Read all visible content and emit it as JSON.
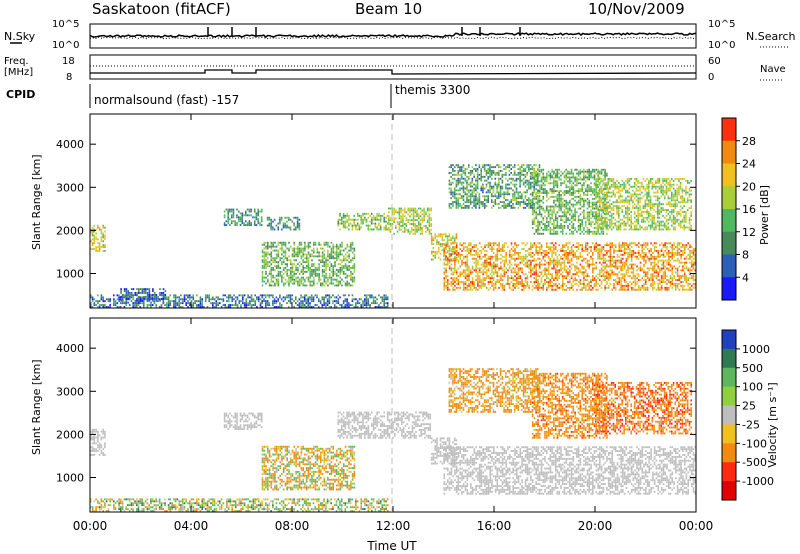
{
  "header": {
    "station": "Saskatoon (fitACF)",
    "beam": "Beam 10",
    "date": "10/Nov/2009"
  },
  "top_panels": {
    "nsky_label": "N.Sky",
    "nsearch_label": "N.Search",
    "nsky_ticks": [
      "10^5",
      "10^0"
    ],
    "nsearch_ticks": [
      "10^5",
      "10^0"
    ],
    "freq_label": "Freq.",
    "freq_unit": "[MHz]",
    "freq_ticks": [
      "18",
      "8"
    ],
    "nave_label": "Nave",
    "nave_ticks": [
      "60",
      "0"
    ],
    "cpid_label": "CPID",
    "cpid_segments": [
      "normalsound (fast) -157",
      "themis 3300"
    ]
  },
  "colorbars": {
    "power": {
      "label": "Power [dB]",
      "ticks": [
        "28",
        "24",
        "20",
        "16",
        "12",
        "8",
        "4"
      ],
      "colors": [
        "#1a1aff",
        "#2b5fb8",
        "#4a8a5a",
        "#4fb860",
        "#a8cf3a",
        "#f0c020",
        "#f08a10",
        "#ff3010"
      ]
    },
    "velocity": {
      "label": "Velocity [m s⁻¹]",
      "ticks": [
        "1000",
        "500",
        "100",
        "25",
        "-25",
        "-100",
        "-500",
        "-1000"
      ],
      "colors": [
        "#2040c0",
        "#2f7a50",
        "#5cb85c",
        "#90d040",
        "#bebebe",
        "#f0c020",
        "#f08a10",
        "#ff2a10",
        "#e00000"
      ]
    }
  },
  "chart_data": [
    {
      "type": "heatmap",
      "title": "Power",
      "ylabel": "Slant Range [km]",
      "xlabel": "",
      "ylim": [
        200,
        4700
      ],
      "yticks": [
        1000,
        2000,
        3000,
        4000
      ],
      "xlim": [
        0,
        24
      ],
      "xtick_labels": [
        "00:00",
        "04:00",
        "08:00",
        "12:00",
        "16:00",
        "20:00",
        "00:00"
      ],
      "colorbar_range_dB": [
        0,
        30
      ],
      "regions": [
        {
          "t0": 0.0,
          "t1": 0.6,
          "r0": 1500,
          "r1": 2100,
          "value": 20
        },
        {
          "t0": 0.0,
          "t1": 11.8,
          "r0": 200,
          "r1": 500,
          "value": 8
        },
        {
          "t0": 1.2,
          "t1": 3.0,
          "r0": 300,
          "r1": 650,
          "value": 6
        },
        {
          "t0": 5.3,
          "t1": 6.8,
          "r0": 2100,
          "r1": 2500,
          "value": 10
        },
        {
          "t0": 7.0,
          "t1": 8.3,
          "r0": 2000,
          "r1": 2300,
          "value": 10
        },
        {
          "t0": 6.8,
          "t1": 10.5,
          "r0": 700,
          "r1": 1700,
          "value": 14
        },
        {
          "t0": 9.8,
          "t1": 11.8,
          "r0": 2000,
          "r1": 2400,
          "value": 16
        },
        {
          "t0": 11.8,
          "t1": 13.5,
          "r0": 1900,
          "r1": 2500,
          "value": 18
        },
        {
          "t0": 13.5,
          "t1": 14.5,
          "r0": 1300,
          "r1": 1900,
          "value": 20
        },
        {
          "t0": 14.0,
          "t1": 24.0,
          "r0": 600,
          "r1": 1700,
          "value": 24
        },
        {
          "t0": 14.2,
          "t1": 17.8,
          "r0": 2500,
          "r1": 3500,
          "value": 12
        },
        {
          "t0": 17.5,
          "t1": 20.5,
          "r0": 1900,
          "r1": 3400,
          "value": 14
        },
        {
          "t0": 20.0,
          "t1": 23.8,
          "r0": 2000,
          "r1": 3200,
          "value": 18
        }
      ]
    },
    {
      "type": "heatmap",
      "title": "Velocity",
      "ylabel": "Slant Range [km]",
      "xlabel": "Time UT",
      "ylim": [
        200,
        4700
      ],
      "yticks": [
        1000,
        2000,
        3000,
        4000
      ],
      "xlim": [
        0,
        24
      ],
      "xtick_labels": [
        "00:00",
        "04:00",
        "08:00",
        "12:00",
        "16:00",
        "20:00",
        "00:00"
      ],
      "colorbar_range_ms": [
        -1000,
        1000
      ],
      "regions": [
        {
          "t0": 0.0,
          "t1": 0.6,
          "r0": 1500,
          "r1": 2100,
          "value": 0
        },
        {
          "t0": 0.0,
          "t1": 11.8,
          "r0": 200,
          "r1": 500,
          "value": 60
        },
        {
          "t0": 5.3,
          "t1": 6.8,
          "r0": 2100,
          "r1": 2500,
          "value": 0
        },
        {
          "t0": 6.8,
          "t1": 10.5,
          "r0": 700,
          "r1": 1700,
          "value": -60
        },
        {
          "t0": 9.8,
          "t1": 13.5,
          "r0": 1900,
          "r1": 2500,
          "value": 0
        },
        {
          "t0": 13.5,
          "t1": 14.5,
          "r0": 1300,
          "r1": 1900,
          "value": 0
        },
        {
          "t0": 14.0,
          "t1": 24.0,
          "r0": 600,
          "r1": 1700,
          "value": 0
        },
        {
          "t0": 14.2,
          "t1": 17.8,
          "r0": 2500,
          "r1": 3500,
          "value": -200
        },
        {
          "t0": 17.5,
          "t1": 20.5,
          "r0": 1900,
          "r1": 3400,
          "value": -300
        },
        {
          "t0": 20.0,
          "t1": 23.8,
          "r0": 2000,
          "r1": 3200,
          "value": -400
        }
      ]
    }
  ],
  "xaxis_label": "Time UT"
}
